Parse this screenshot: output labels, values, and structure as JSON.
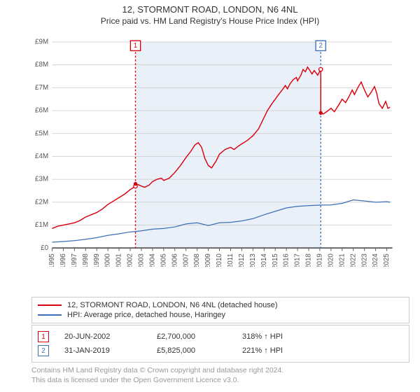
{
  "title_main": "12, STORMONT ROAD, LONDON, N6 4NL",
  "title_sub": "Price paid vs. HM Land Registry's House Price Index (HPI)",
  "chart": {
    "type": "line",
    "background_color": "#ffffff",
    "shaded_region_color": "#eaf0f8",
    "grid_color": "#d0d0d0",
    "baseline_color": "#555555",
    "x_years": [
      1995,
      1996,
      1997,
      1998,
      1999,
      2000,
      2001,
      2002,
      2003,
      2004,
      2005,
      2006,
      2007,
      2008,
      2009,
      2010,
      2011,
      2012,
      2013,
      2014,
      2015,
      2016,
      2017,
      2018,
      2019,
      2020,
      2021,
      2022,
      2023,
      2024,
      2025
    ],
    "y_ticks": [
      0,
      1,
      2,
      3,
      4,
      5,
      6,
      7,
      8,
      9
    ],
    "y_tick_labels": [
      "£0",
      "£1M",
      "£2M",
      "£3M",
      "£4M",
      "£5M",
      "£6M",
      "£7M",
      "£8M",
      "£9M"
    ],
    "xlim": [
      1995,
      2025.5
    ],
    "ylim": [
      0,
      9
    ],
    "tick_fontsize": 11,
    "shaded_start_year": 2002.47,
    "shaded_end_year": 2019.08,
    "series": [
      {
        "name": "12, STORMONT ROAD, LONDON, N6 4NL (detached house)",
        "color": "#d9000d",
        "line_width": 1.6,
        "data": [
          [
            1995,
            0.85
          ],
          [
            1995.5,
            0.95
          ],
          [
            1996,
            1.0
          ],
          [
            1996.5,
            1.05
          ],
          [
            1997,
            1.1
          ],
          [
            1997.5,
            1.2
          ],
          [
            1998,
            1.35
          ],
          [
            1998.5,
            1.45
          ],
          [
            1999,
            1.55
          ],
          [
            1999.5,
            1.7
          ],
          [
            2000,
            1.9
          ],
          [
            2000.5,
            2.05
          ],
          [
            2001,
            2.2
          ],
          [
            2001.5,
            2.35
          ],
          [
            2002,
            2.55
          ],
          [
            2002.47,
            2.7
          ],
          [
            2002.47,
            2.8
          ],
          [
            2002.8,
            2.75
          ],
          [
            2003,
            2.7
          ],
          [
            2003.3,
            2.65
          ],
          [
            2003.7,
            2.75
          ],
          [
            2004,
            2.9
          ],
          [
            2004.4,
            3.0
          ],
          [
            2004.8,
            3.05
          ],
          [
            2005,
            2.95
          ],
          [
            2005.5,
            3.05
          ],
          [
            2006,
            3.3
          ],
          [
            2006.5,
            3.6
          ],
          [
            2007,
            3.95
          ],
          [
            2007.4,
            4.2
          ],
          [
            2007.8,
            4.5
          ],
          [
            2008.1,
            4.6
          ],
          [
            2008.4,
            4.4
          ],
          [
            2008.7,
            3.9
          ],
          [
            2009,
            3.6
          ],
          [
            2009.3,
            3.5
          ],
          [
            2009.7,
            3.8
          ],
          [
            2010,
            4.1
          ],
          [
            2010.5,
            4.3
          ],
          [
            2011,
            4.4
          ],
          [
            2011.3,
            4.3
          ],
          [
            2011.7,
            4.45
          ],
          [
            2012,
            4.55
          ],
          [
            2012.5,
            4.7
          ],
          [
            2013,
            4.9
          ],
          [
            2013.5,
            5.2
          ],
          [
            2014,
            5.7
          ],
          [
            2014.3,
            6.0
          ],
          [
            2014.7,
            6.3
          ],
          [
            2015,
            6.5
          ],
          [
            2015.3,
            6.7
          ],
          [
            2015.7,
            6.95
          ],
          [
            2015.9,
            7.1
          ],
          [
            2016.1,
            6.95
          ],
          [
            2016.3,
            7.15
          ],
          [
            2016.6,
            7.35
          ],
          [
            2016.9,
            7.45
          ],
          [
            2017,
            7.3
          ],
          [
            2017.3,
            7.55
          ],
          [
            2017.5,
            7.8
          ],
          [
            2017.7,
            7.7
          ],
          [
            2017.9,
            7.9
          ],
          [
            2018.1,
            7.75
          ],
          [
            2018.3,
            7.6
          ],
          [
            2018.5,
            7.75
          ],
          [
            2018.8,
            7.55
          ],
          [
            2019.08,
            7.8
          ],
          [
            2019.08,
            5.9
          ],
          [
            2019.3,
            5.85
          ],
          [
            2019.6,
            5.95
          ],
          [
            2020,
            6.1
          ],
          [
            2020.3,
            5.95
          ],
          [
            2020.7,
            6.25
          ],
          [
            2021,
            6.5
          ],
          [
            2021.3,
            6.35
          ],
          [
            2021.6,
            6.6
          ],
          [
            2021.9,
            6.9
          ],
          [
            2022.1,
            6.7
          ],
          [
            2022.4,
            7.0
          ],
          [
            2022.7,
            7.25
          ],
          [
            2023,
            6.9
          ],
          [
            2023.3,
            6.6
          ],
          [
            2023.6,
            6.8
          ],
          [
            2023.9,
            7.05
          ],
          [
            2024.1,
            6.75
          ],
          [
            2024.3,
            6.3
          ],
          [
            2024.6,
            6.1
          ],
          [
            2024.9,
            6.4
          ],
          [
            2025.1,
            6.1
          ],
          [
            2025.3,
            6.15
          ]
        ]
      },
      {
        "name": "HPI: Average price, detached house, Haringey",
        "color": "#3b6fb6",
        "line_width": 1.4,
        "data": [
          [
            1995,
            0.25
          ],
          [
            1996,
            0.28
          ],
          [
            1997,
            0.32
          ],
          [
            1998,
            0.38
          ],
          [
            1999,
            0.45
          ],
          [
            2000,
            0.55
          ],
          [
            2001,
            0.62
          ],
          [
            2002,
            0.7
          ],
          [
            2002.47,
            0.72
          ],
          [
            2003,
            0.75
          ],
          [
            2004,
            0.82
          ],
          [
            2005,
            0.85
          ],
          [
            2006,
            0.92
          ],
          [
            2007,
            1.05
          ],
          [
            2008,
            1.1
          ],
          [
            2009,
            0.98
          ],
          [
            2010,
            1.1
          ],
          [
            2011,
            1.12
          ],
          [
            2012,
            1.18
          ],
          [
            2013,
            1.28
          ],
          [
            2014,
            1.45
          ],
          [
            2015,
            1.6
          ],
          [
            2016,
            1.75
          ],
          [
            2017,
            1.82
          ],
          [
            2018,
            1.85
          ],
          [
            2019,
            1.87
          ],
          [
            2019.08,
            1.87
          ],
          [
            2020,
            1.88
          ],
          [
            2021,
            1.95
          ],
          [
            2022,
            2.1
          ],
          [
            2023,
            2.05
          ],
          [
            2024,
            2.0
          ],
          [
            2025,
            2.02
          ],
          [
            2025.3,
            2.0
          ]
        ]
      }
    ],
    "markers": [
      {
        "n": "1",
        "year": 2002.47,
        "color": "#d9000d"
      },
      {
        "n": "2",
        "year": 2019.08,
        "color": "#3b6fb6"
      }
    ]
  },
  "legend": {
    "items": [
      {
        "label": "12, STORMONT ROAD, LONDON, N6 4NL (detached house)",
        "color": "#d9000d"
      },
      {
        "label": "HPI: Average price, detached house, Haringey",
        "color": "#3b6fb6"
      }
    ]
  },
  "sales": {
    "rows": [
      {
        "n": "1",
        "color": "#d9000d",
        "date": "20-JUN-2002",
        "price": "£2,700,000",
        "hpi_pct": "318% ↑ HPI"
      },
      {
        "n": "2",
        "color": "#3b6fb6",
        "date": "31-JAN-2019",
        "price": "£5,825,000",
        "hpi_pct": "221% ↑ HPI"
      }
    ]
  },
  "footer": {
    "line1": "Contains HM Land Registry data © Crown copyright and database right 2024.",
    "line2": "This data is licensed under the Open Government Licence v3.0."
  }
}
